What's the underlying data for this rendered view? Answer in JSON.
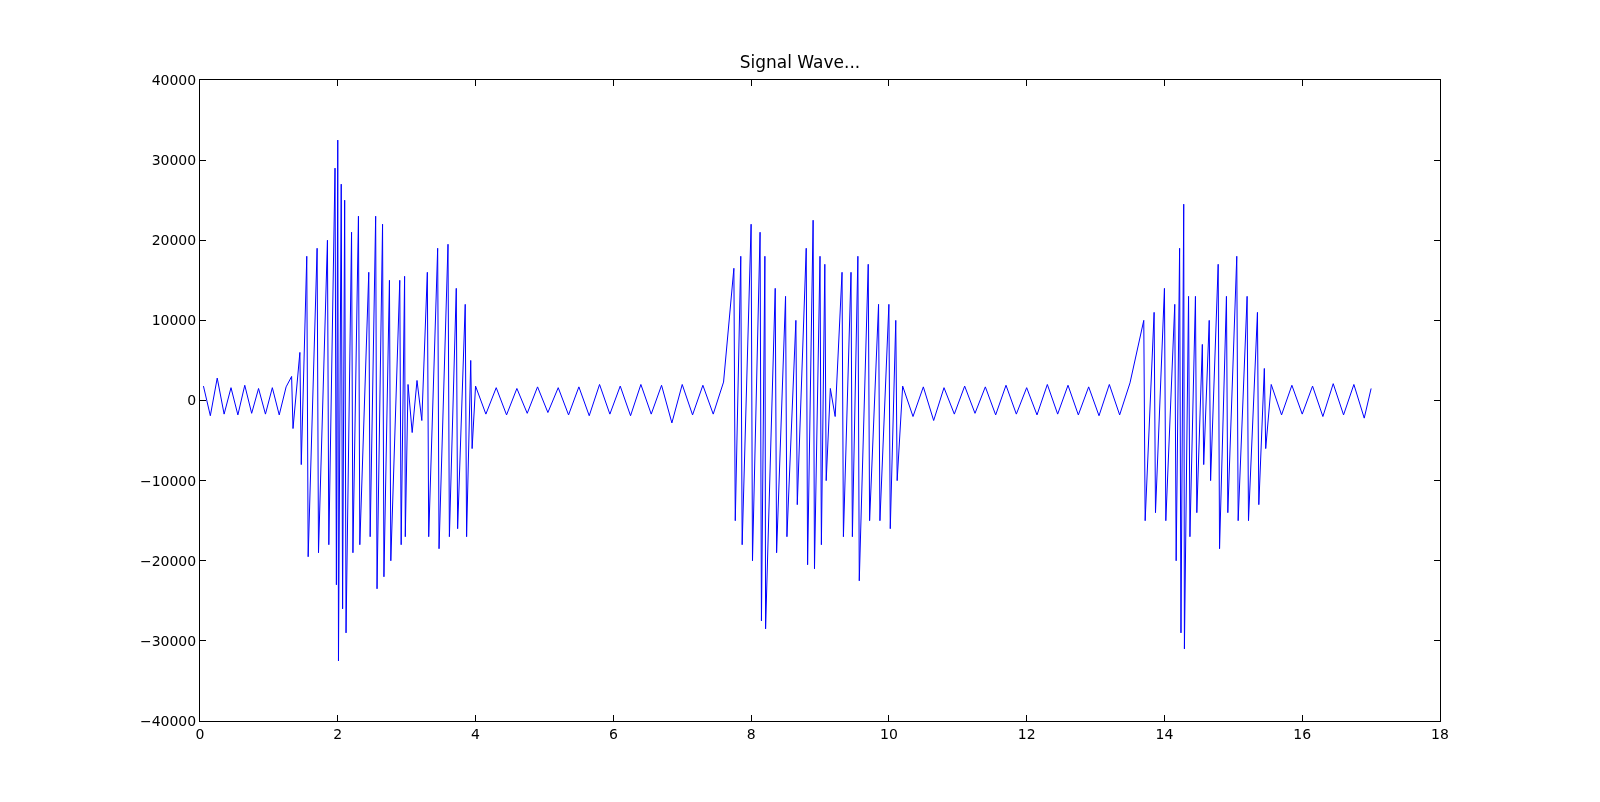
{
  "chart_data": {
    "type": "line",
    "title": "Signal Wave...",
    "series": [
      {
        "color": "#0000ff",
        "x": [
          0.05,
          0.15,
          0.25,
          0.35,
          0.45,
          0.55,
          0.65,
          0.75,
          0.85,
          0.95,
          1.05,
          1.15,
          1.25,
          1.33,
          1.35,
          1.45,
          1.47,
          1.55,
          1.57,
          1.7,
          1.72,
          1.85,
          1.87,
          1.96,
          1.98,
          2.0,
          2.01,
          2.05,
          2.07,
          2.1,
          2.12,
          2.2,
          2.22,
          2.3,
          2.32,
          2.45,
          2.47,
          2.55,
          2.57,
          2.65,
          2.67,
          2.75,
          2.77,
          2.9,
          2.92,
          2.97,
          2.98,
          3.02,
          3.08,
          3.15,
          3.22,
          3.3,
          3.32,
          3.45,
          3.47,
          3.6,
          3.62,
          3.72,
          3.74,
          3.85,
          3.87,
          3.93,
          3.95,
          4.0,
          4.15,
          4.3,
          4.45,
          4.6,
          4.75,
          4.9,
          5.05,
          5.2,
          5.35,
          5.5,
          5.65,
          5.8,
          5.95,
          6.1,
          6.25,
          6.4,
          6.55,
          6.7,
          6.85,
          7.0,
          7.15,
          7.3,
          7.45,
          7.6,
          7.75,
          7.77,
          7.85,
          7.87,
          8.0,
          8.02,
          8.13,
          8.15,
          8.2,
          8.21,
          8.35,
          8.37,
          8.5,
          8.52,
          8.65,
          8.67,
          8.8,
          8.82,
          8.9,
          8.92,
          9.0,
          9.02,
          9.07,
          9.09,
          9.15,
          9.22,
          9.32,
          9.34,
          9.45,
          9.47,
          9.55,
          9.57,
          9.7,
          9.72,
          9.85,
          9.87,
          10.0,
          10.02,
          10.1,
          10.12,
          10.2,
          10.35,
          10.5,
          10.65,
          10.8,
          10.95,
          11.1,
          11.25,
          11.4,
          11.55,
          11.7,
          11.85,
          12.0,
          12.15,
          12.3,
          12.45,
          12.6,
          12.75,
          12.9,
          13.05,
          13.2,
          13.35,
          13.5,
          13.7,
          13.72,
          13.85,
          13.87,
          14.0,
          14.02,
          14.15,
          14.17,
          14.22,
          14.24,
          14.28,
          14.29,
          14.35,
          14.37,
          14.45,
          14.47,
          14.55,
          14.57,
          14.65,
          14.67,
          14.78,
          14.8,
          14.9,
          14.92,
          15.05,
          15.07,
          15.2,
          15.22,
          15.35,
          15.37,
          15.45,
          15.47,
          15.55,
          15.7,
          15.85,
          16.0,
          16.15,
          16.3,
          16.45,
          16.6,
          16.75,
          16.9,
          17.0
        ],
        "values": [
          1800,
          -1900,
          2800,
          -1700,
          1600,
          -1800,
          1900,
          -1600,
          1500,
          -1700,
          1600,
          -1800,
          1700,
          3000,
          -3500,
          6000,
          -8000,
          18000,
          -19500,
          19000,
          -19000,
          20000,
          -18000,
          29000,
          -23000,
          32500,
          -32500,
          27000,
          -26000,
          25000,
          -29000,
          21000,
          -19000,
          23000,
          -18000,
          16000,
          -17000,
          23000,
          -23500,
          22000,
          -22000,
          15000,
          -20000,
          15000,
          -18000,
          15500,
          -17000,
          2000,
          -4000,
          2500,
          -2500,
          16000,
          -17000,
          19000,
          -18500,
          19500,
          -17000,
          14000,
          -16000,
          12000,
          -17000,
          5000,
          -6000,
          1800,
          -1700,
          1600,
          -1800,
          1500,
          -1600,
          1700,
          -1500,
          1600,
          -1800,
          1700,
          -1900,
          2000,
          -1700,
          1800,
          -1900,
          2000,
          -1700,
          1900,
          -2800,
          2000,
          -1800,
          1900,
          -1700,
          2300,
          16500,
          -15000,
          18000,
          -18000,
          22000,
          -20000,
          21000,
          -27500,
          18000,
          -28500,
          14000,
          -19000,
          13000,
          -17000,
          10000,
          -13000,
          19000,
          -20500,
          22500,
          -21000,
          18000,
          -18000,
          17000,
          -10000,
          1500,
          -2000,
          16000,
          -17000,
          16000,
          -17000,
          18000,
          -22500,
          17000,
          -15000,
          12000,
          -15000,
          12000,
          -16000,
          10000,
          -10000,
          1800,
          -2000,
          1700,
          -2500,
          1600,
          -1700,
          1800,
          -1600,
          1700,
          -1800,
          1900,
          -1700,
          1600,
          -1800,
          2000,
          -1700,
          1900,
          -1800,
          1700,
          -1900,
          2000,
          -1800,
          2200,
          10000,
          -15000,
          11000,
          -14000,
          14000,
          -15000,
          12000,
          -20000,
          19000,
          -29000,
          24500,
          -31000,
          13000,
          -17000,
          13000,
          -14000,
          7000,
          -8000,
          10000,
          -10000,
          17000,
          -18500,
          13000,
          -14000,
          18000,
          -15000,
          13000,
          -15000,
          11000,
          -13000,
          4000,
          -6000,
          2000,
          -1800,
          1900,
          -1700,
          1800,
          -2000,
          2100,
          -1800,
          2000,
          -2200,
          1500
        ]
      }
    ],
    "xlim": [
      0,
      18
    ],
    "xticks": [
      0,
      2,
      4,
      6,
      8,
      10,
      12,
      14,
      16,
      18
    ],
    "ylim": [
      -40000,
      40000
    ],
    "yticks": [
      -40000,
      -30000,
      -20000,
      -10000,
      0,
      10000,
      20000,
      30000,
      40000
    ],
    "marker": "none"
  }
}
